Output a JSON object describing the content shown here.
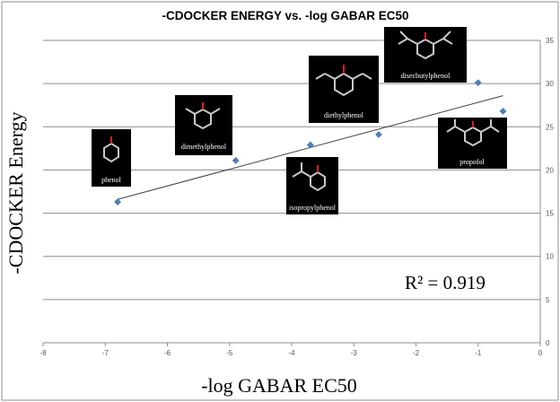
{
  "chart_data": {
    "type": "scatter",
    "title": "-CDOCKER ENERGY vs. -log GABAR EC50",
    "xlabel": "-log GABAR EC50",
    "ylabel": "-CDOCKER Energy",
    "xlim": [
      -8,
      0
    ],
    "ylim": [
      0,
      35
    ],
    "x_ticks": [
      "-8",
      "-7",
      "-6",
      "-5",
      "-4",
      "-3",
      "-2",
      "-1",
      "0"
    ],
    "y_ticks": [
      "0",
      "5",
      "10",
      "15",
      "20",
      "25",
      "30",
      "35"
    ],
    "grid": "horizontal",
    "marker_color": "#4a7ebb",
    "trendline_color": "#404040",
    "points": [
      {
        "x": -6.8,
        "y": 16.3
      },
      {
        "x": -4.9,
        "y": 21.1
      },
      {
        "x": -3.7,
        "y": 22.9
      },
      {
        "x": -2.6,
        "y": 24.1
      },
      {
        "x": -1.0,
        "y": 30.1
      },
      {
        "x": -0.6,
        "y": 26.8
      }
    ],
    "trendline": {
      "x": [
        -6.8,
        -0.6
      ],
      "y": [
        16.6,
        28.6
      ]
    },
    "annotation": {
      "text": "R² = 0.919"
    },
    "molecules": [
      {
        "label": "phenol"
      },
      {
        "label": "dimethylphenol"
      },
      {
        "label": "isopropylphenol"
      },
      {
        "label": "diethylphenol"
      },
      {
        "label": "disecbutylphenol"
      },
      {
        "label": "propofol"
      }
    ]
  }
}
